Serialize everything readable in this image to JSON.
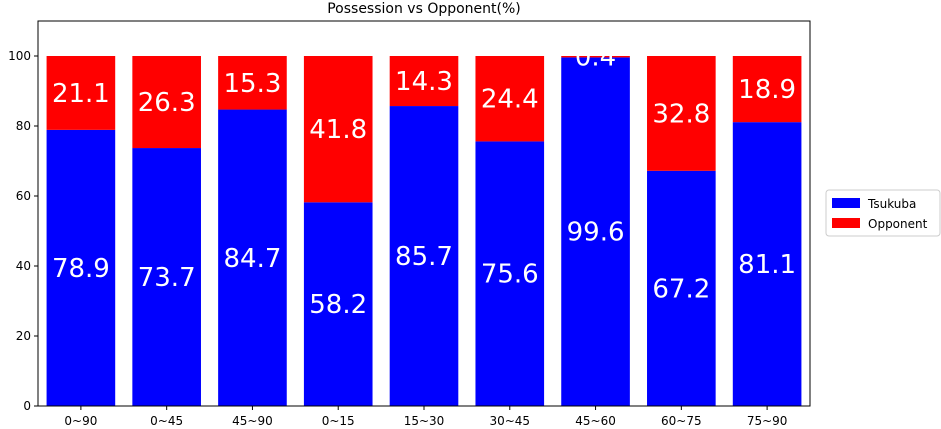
{
  "chart_data": {
    "type": "bar",
    "stacked": true,
    "title": "Possession vs Opponent(%)",
    "xlabel": "",
    "ylabel": "",
    "ylim": [
      0,
      110
    ],
    "yticks": [
      0,
      20,
      40,
      60,
      80,
      100
    ],
    "categories": [
      "0~90",
      "0~45",
      "45~90",
      "0~15",
      "15~30",
      "30~45",
      "45~60",
      "60~75",
      "75~90"
    ],
    "series": [
      {
        "name": "Tsukuba",
        "color": "#0000ff",
        "values": [
          78.9,
          73.7,
          84.7,
          58.2,
          85.7,
          75.6,
          99.6,
          67.2,
          81.1
        ]
      },
      {
        "name": "Opponent",
        "color": "#ff0000",
        "values": [
          21.1,
          26.3,
          15.3,
          41.8,
          14.3,
          24.4,
          0.4,
          32.8,
          18.9
        ]
      }
    ],
    "legend": "outside-right",
    "grid": false
  }
}
